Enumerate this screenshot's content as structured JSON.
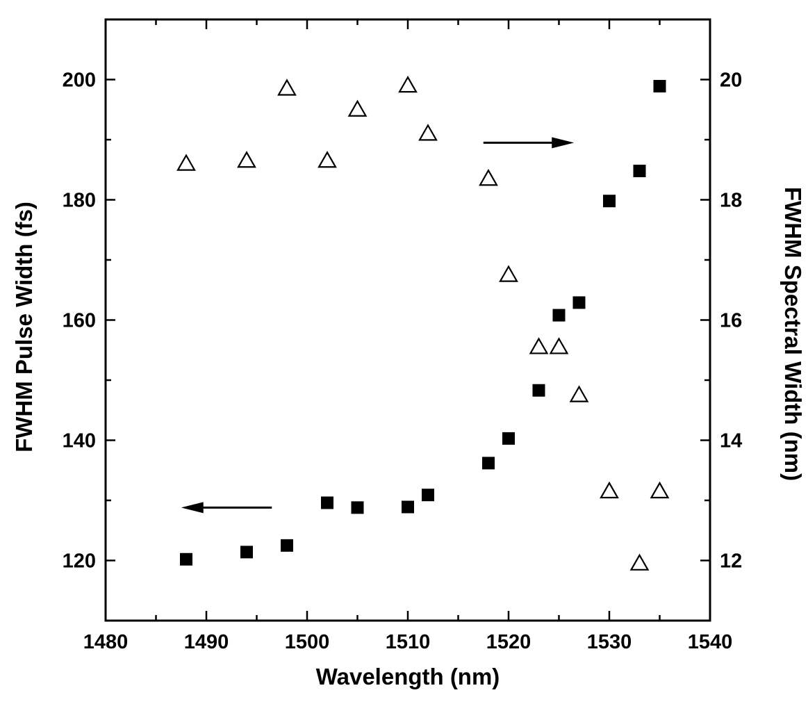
{
  "chart_data": {
    "type": "scatter",
    "xlabel": "Wavelength (nm)",
    "ylabel_left": "FWHM Pulse Width (fs)",
    "ylabel_right": "FWHM Spectral Width (nm)",
    "xlim": [
      1480,
      1540
    ],
    "ylim_left": [
      110,
      210
    ],
    "ylim_right": [
      11,
      21
    ],
    "x_ticks": [
      1480,
      1490,
      1500,
      1510,
      1520,
      1530,
      1540
    ],
    "y_left_ticks": [
      120,
      140,
      160,
      180,
      200
    ],
    "y_right_ticks": [
      12,
      14,
      16,
      18,
      20
    ],
    "grid": false,
    "series": [
      {
        "axis": "left",
        "marker": "filled-square",
        "x": [
          1488,
          1494,
          1498,
          1502,
          1505,
          1510,
          1512,
          1518,
          1520,
          1523,
          1525,
          1527,
          1530,
          1533,
          1535
        ],
        "y": [
          120.2,
          121.4,
          122.5,
          129.6,
          128.8,
          128.9,
          130.9,
          136.2,
          140.3,
          148.3,
          160.8,
          162.9,
          179.8,
          184.8,
          198.9
        ]
      },
      {
        "axis": "right",
        "marker": "open-triangle",
        "x": [
          1488,
          1494,
          1498,
          1502,
          1505,
          1510,
          1512,
          1518,
          1520,
          1523,
          1525,
          1527,
          1530,
          1533,
          1535
        ],
        "y": [
          18.6,
          18.65,
          19.85,
          18.65,
          19.5,
          19.9,
          19.1,
          18.35,
          16.75,
          15.55,
          15.55,
          14.75,
          13.15,
          11.95,
          13.15
        ]
      }
    ],
    "annotations": [
      {
        "type": "arrow",
        "direction": "left",
        "points_to_axis": "left",
        "from": [
          1496.5,
          128.8
        ],
        "to": [
          1487.5,
          128.8
        ]
      },
      {
        "type": "arrow",
        "direction": "right",
        "points_to_axis": "right",
        "from": [
          1517.5,
          18.95
        ],
        "to": [
          1526.5,
          18.95
        ]
      }
    ]
  }
}
